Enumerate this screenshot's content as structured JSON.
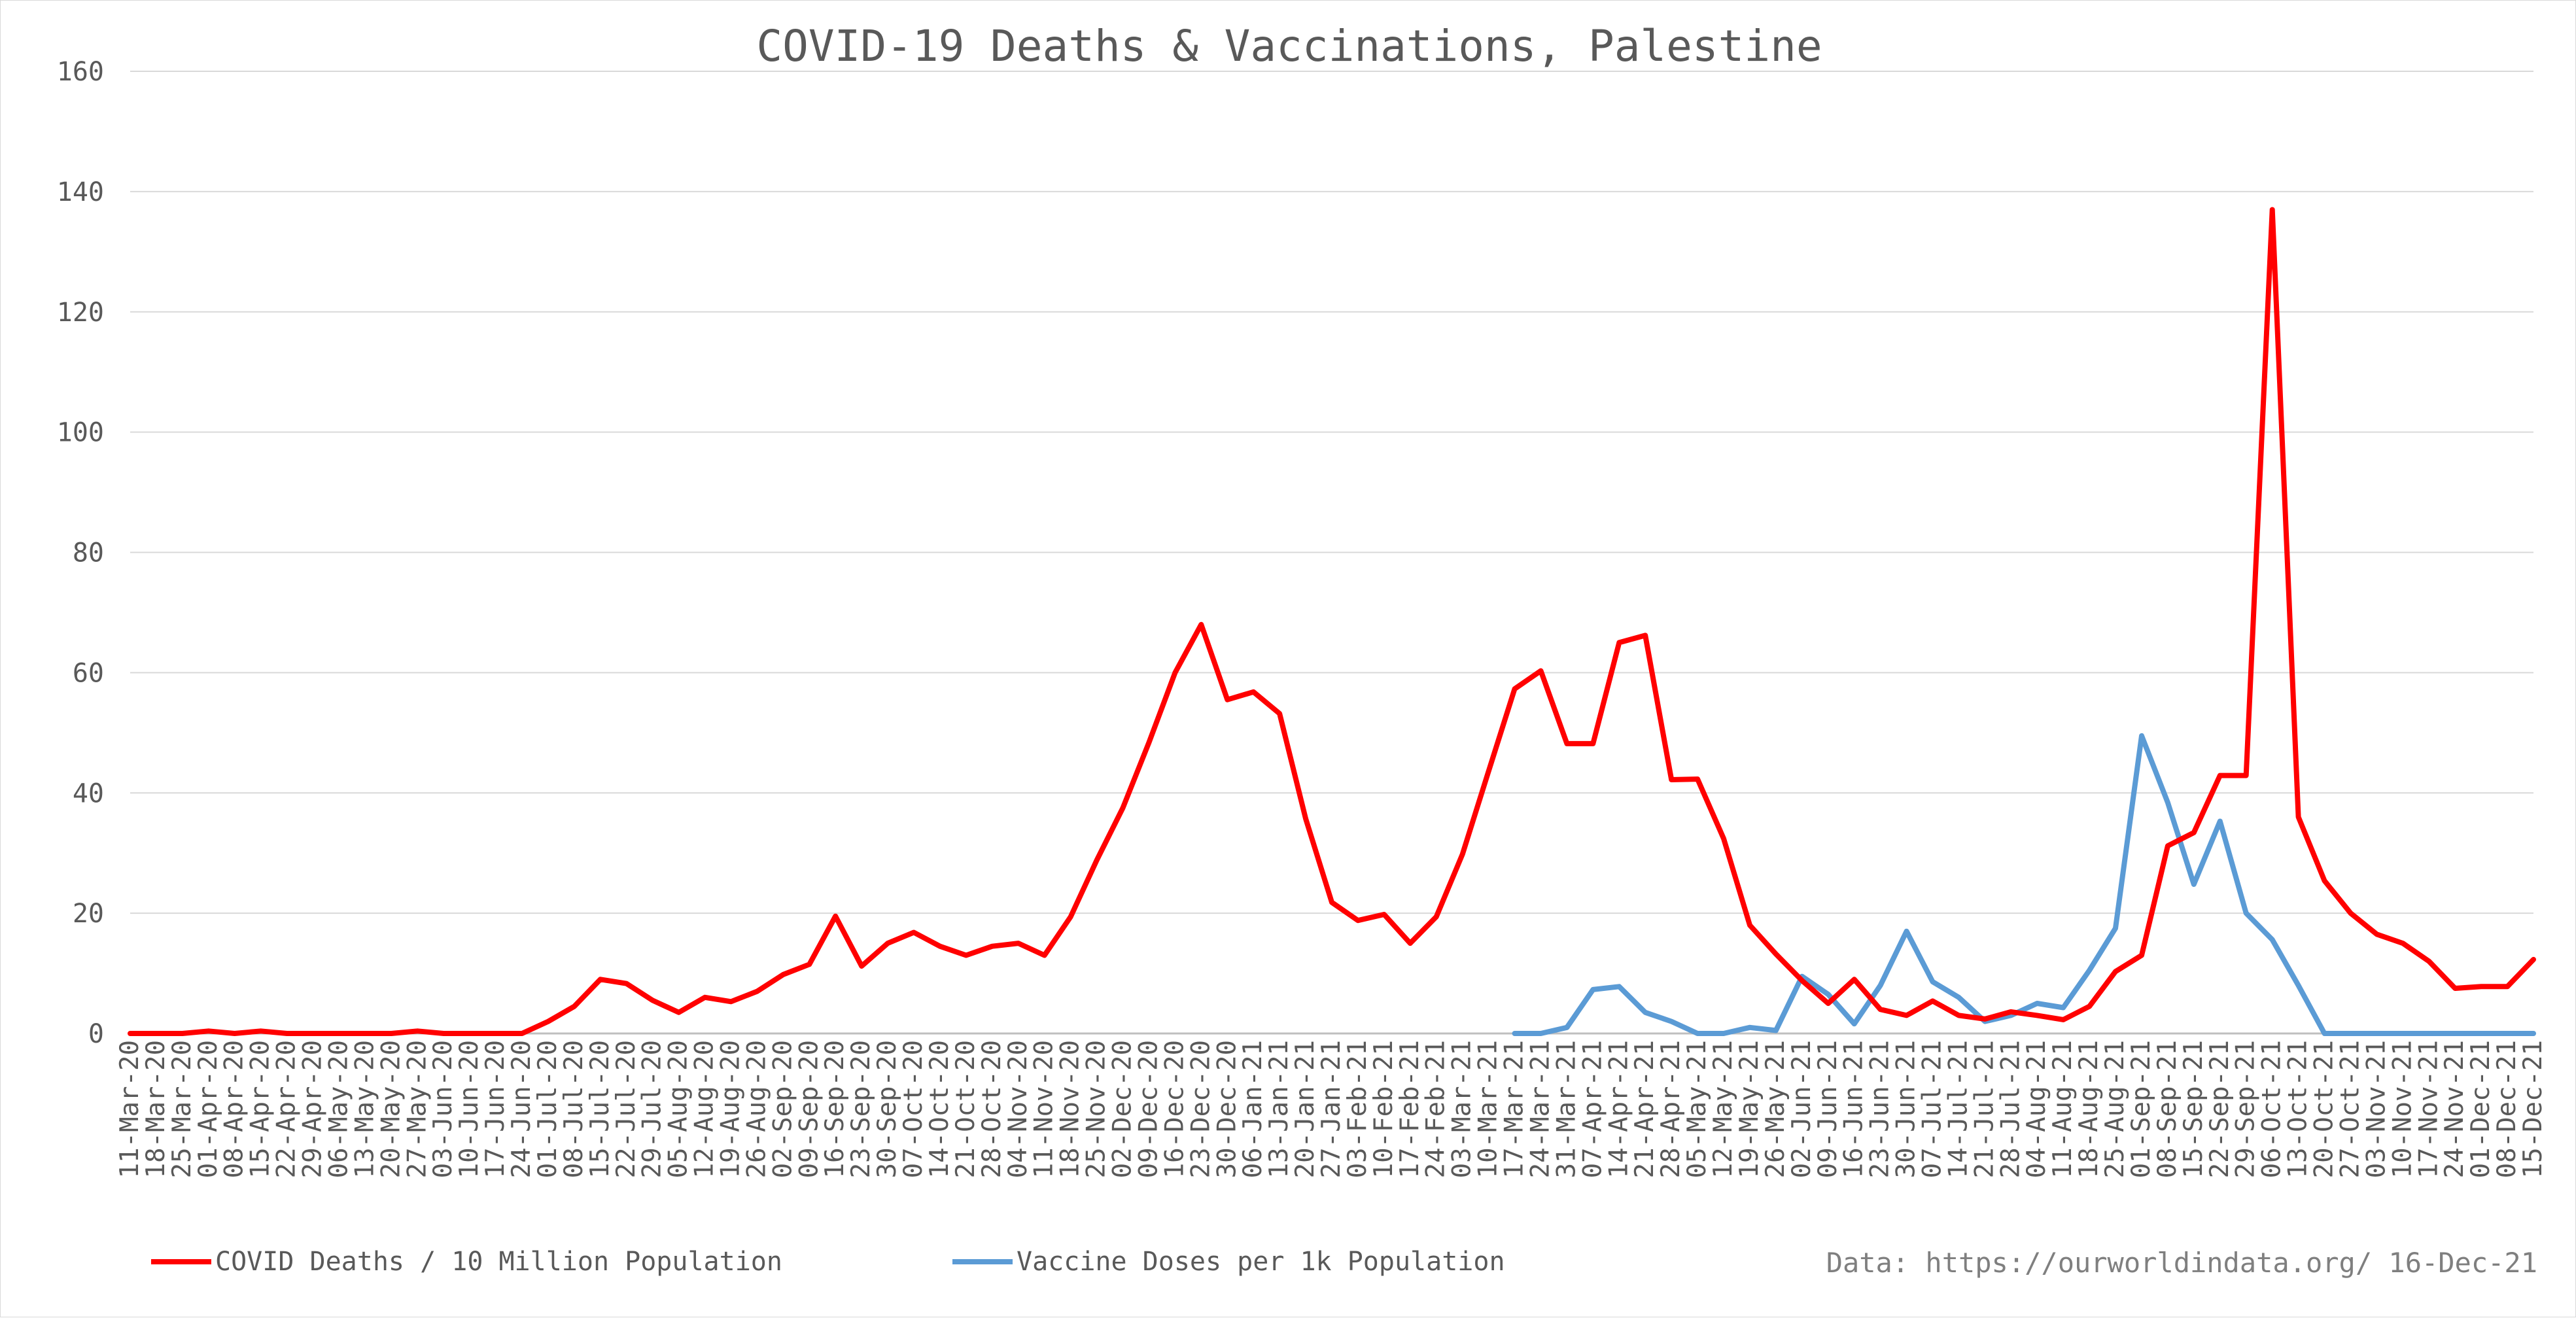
{
  "chart_data": {
    "type": "line",
    "title": "COVID-19 Deaths & Vaccinations, Palestine",
    "source_note": "Data: https://ourworldindata.org/ 16-Dec-21",
    "ylim": [
      0,
      160
    ],
    "yticks": [
      "0",
      "20",
      "40",
      "60",
      "80",
      "100",
      "120",
      "140",
      "160"
    ],
    "grid": true,
    "legend_position": "bottom",
    "x": [
      "11-Mar-20",
      "18-Mar-20",
      "25-Mar-20",
      "01-Apr-20",
      "08-Apr-20",
      "15-Apr-20",
      "22-Apr-20",
      "29-Apr-20",
      "06-May-20",
      "13-May-20",
      "20-May-20",
      "27-May-20",
      "03-Jun-20",
      "10-Jun-20",
      "17-Jun-20",
      "24-Jun-20",
      "01-Jul-20",
      "08-Jul-20",
      "15-Jul-20",
      "22-Jul-20",
      "29-Jul-20",
      "05-Aug-20",
      "12-Aug-20",
      "19-Aug-20",
      "26-Aug-20",
      "02-Sep-20",
      "09-Sep-20",
      "16-Sep-20",
      "23-Sep-20",
      "30-Sep-20",
      "07-Oct-20",
      "14-Oct-20",
      "21-Oct-20",
      "28-Oct-20",
      "04-Nov-20",
      "11-Nov-20",
      "18-Nov-20",
      "25-Nov-20",
      "02-Dec-20",
      "09-Dec-20",
      "16-Dec-20",
      "23-Dec-20",
      "30-Dec-20",
      "06-Jan-21",
      "13-Jan-21",
      "20-Jan-21",
      "27-Jan-21",
      "03-Feb-21",
      "10-Feb-21",
      "17-Feb-21",
      "24-Feb-21",
      "03-Mar-21",
      "10-Mar-21",
      "17-Mar-21",
      "24-Mar-21",
      "31-Mar-21",
      "07-Apr-21",
      "14-Apr-21",
      "21-Apr-21",
      "28-Apr-21",
      "05-May-21",
      "12-May-21",
      "19-May-21",
      "26-May-21",
      "02-Jun-21",
      "09-Jun-21",
      "16-Jun-21",
      "23-Jun-21",
      "30-Jun-21",
      "07-Jul-21",
      "14-Jul-21",
      "21-Jul-21",
      "28-Jul-21",
      "04-Aug-21",
      "11-Aug-21",
      "18-Aug-21",
      "25-Aug-21",
      "01-Sep-21",
      "08-Sep-21",
      "15-Sep-21",
      "22-Sep-21",
      "29-Sep-21",
      "06-Oct-21",
      "13-Oct-21",
      "20-Oct-21",
      "27-Oct-21",
      "03-Nov-21",
      "10-Nov-21",
      "17-Nov-21",
      "24-Nov-21",
      "01-Dec-21",
      "08-Dec-21",
      "15-Dec-21"
    ],
    "series": [
      {
        "name": "COVID Deaths / 10 Million Population",
        "color": "#ff0000",
        "values": [
          0,
          0,
          0,
          0.4,
          0,
          0.4,
          0,
          0,
          0,
          0,
          0,
          0.4,
          0,
          0,
          0,
          0,
          2,
          4.5,
          9,
          8.3,
          5.5,
          3.5,
          6,
          5.3,
          7,
          9.8,
          11.5,
          19.5,
          11.2,
          15,
          16.8,
          14.5,
          13,
          14.5,
          15,
          13,
          19.4,
          28.8,
          37.5,
          48.4,
          60,
          68,
          55.5,
          56.8,
          53.2,
          35.7,
          21.8,
          18.8,
          19.8,
          15,
          19.4,
          29.8,
          43.6,
          57.3,
          60.3,
          48.2,
          48.2,
          65,
          66.2,
          42.2,
          42.3,
          32.4,
          18,
          13.2,
          8.8,
          5,
          9,
          4,
          3,
          5.4,
          3,
          2.4,
          3.6,
          3,
          2.3,
          4.5,
          10.3,
          13,
          31.2,
          33.4,
          42.9,
          42.9,
          137,
          36,
          25.4,
          20,
          16.5,
          15,
          12,
          7.5,
          7.8,
          7.8,
          12.3
        ]
      },
      {
        "name": "Vaccine Doses per 1k Population",
        "color": "#5b9bd5",
        "values": [
          null,
          null,
          null,
          null,
          null,
          null,
          null,
          null,
          null,
          null,
          null,
          null,
          null,
          null,
          null,
          null,
          null,
          null,
          null,
          null,
          null,
          null,
          null,
          null,
          null,
          null,
          null,
          null,
          null,
          null,
          null,
          null,
          null,
          null,
          null,
          null,
          null,
          null,
          null,
          null,
          null,
          null,
          null,
          null,
          null,
          null,
          null,
          null,
          null,
          null,
          null,
          null,
          null,
          0,
          0,
          1,
          7.3,
          7.8,
          3.5,
          2,
          0,
          0,
          1,
          0.5,
          9.5,
          6.5,
          1.6,
          8,
          17,
          8.6,
          6,
          2,
          3,
          5,
          4.3,
          10.5,
          17.5,
          49.5,
          38.4,
          24.8,
          35.3,
          20,
          15.6,
          8,
          0,
          0,
          0,
          0,
          0,
          0,
          0,
          0,
          0
        ]
      }
    ]
  }
}
